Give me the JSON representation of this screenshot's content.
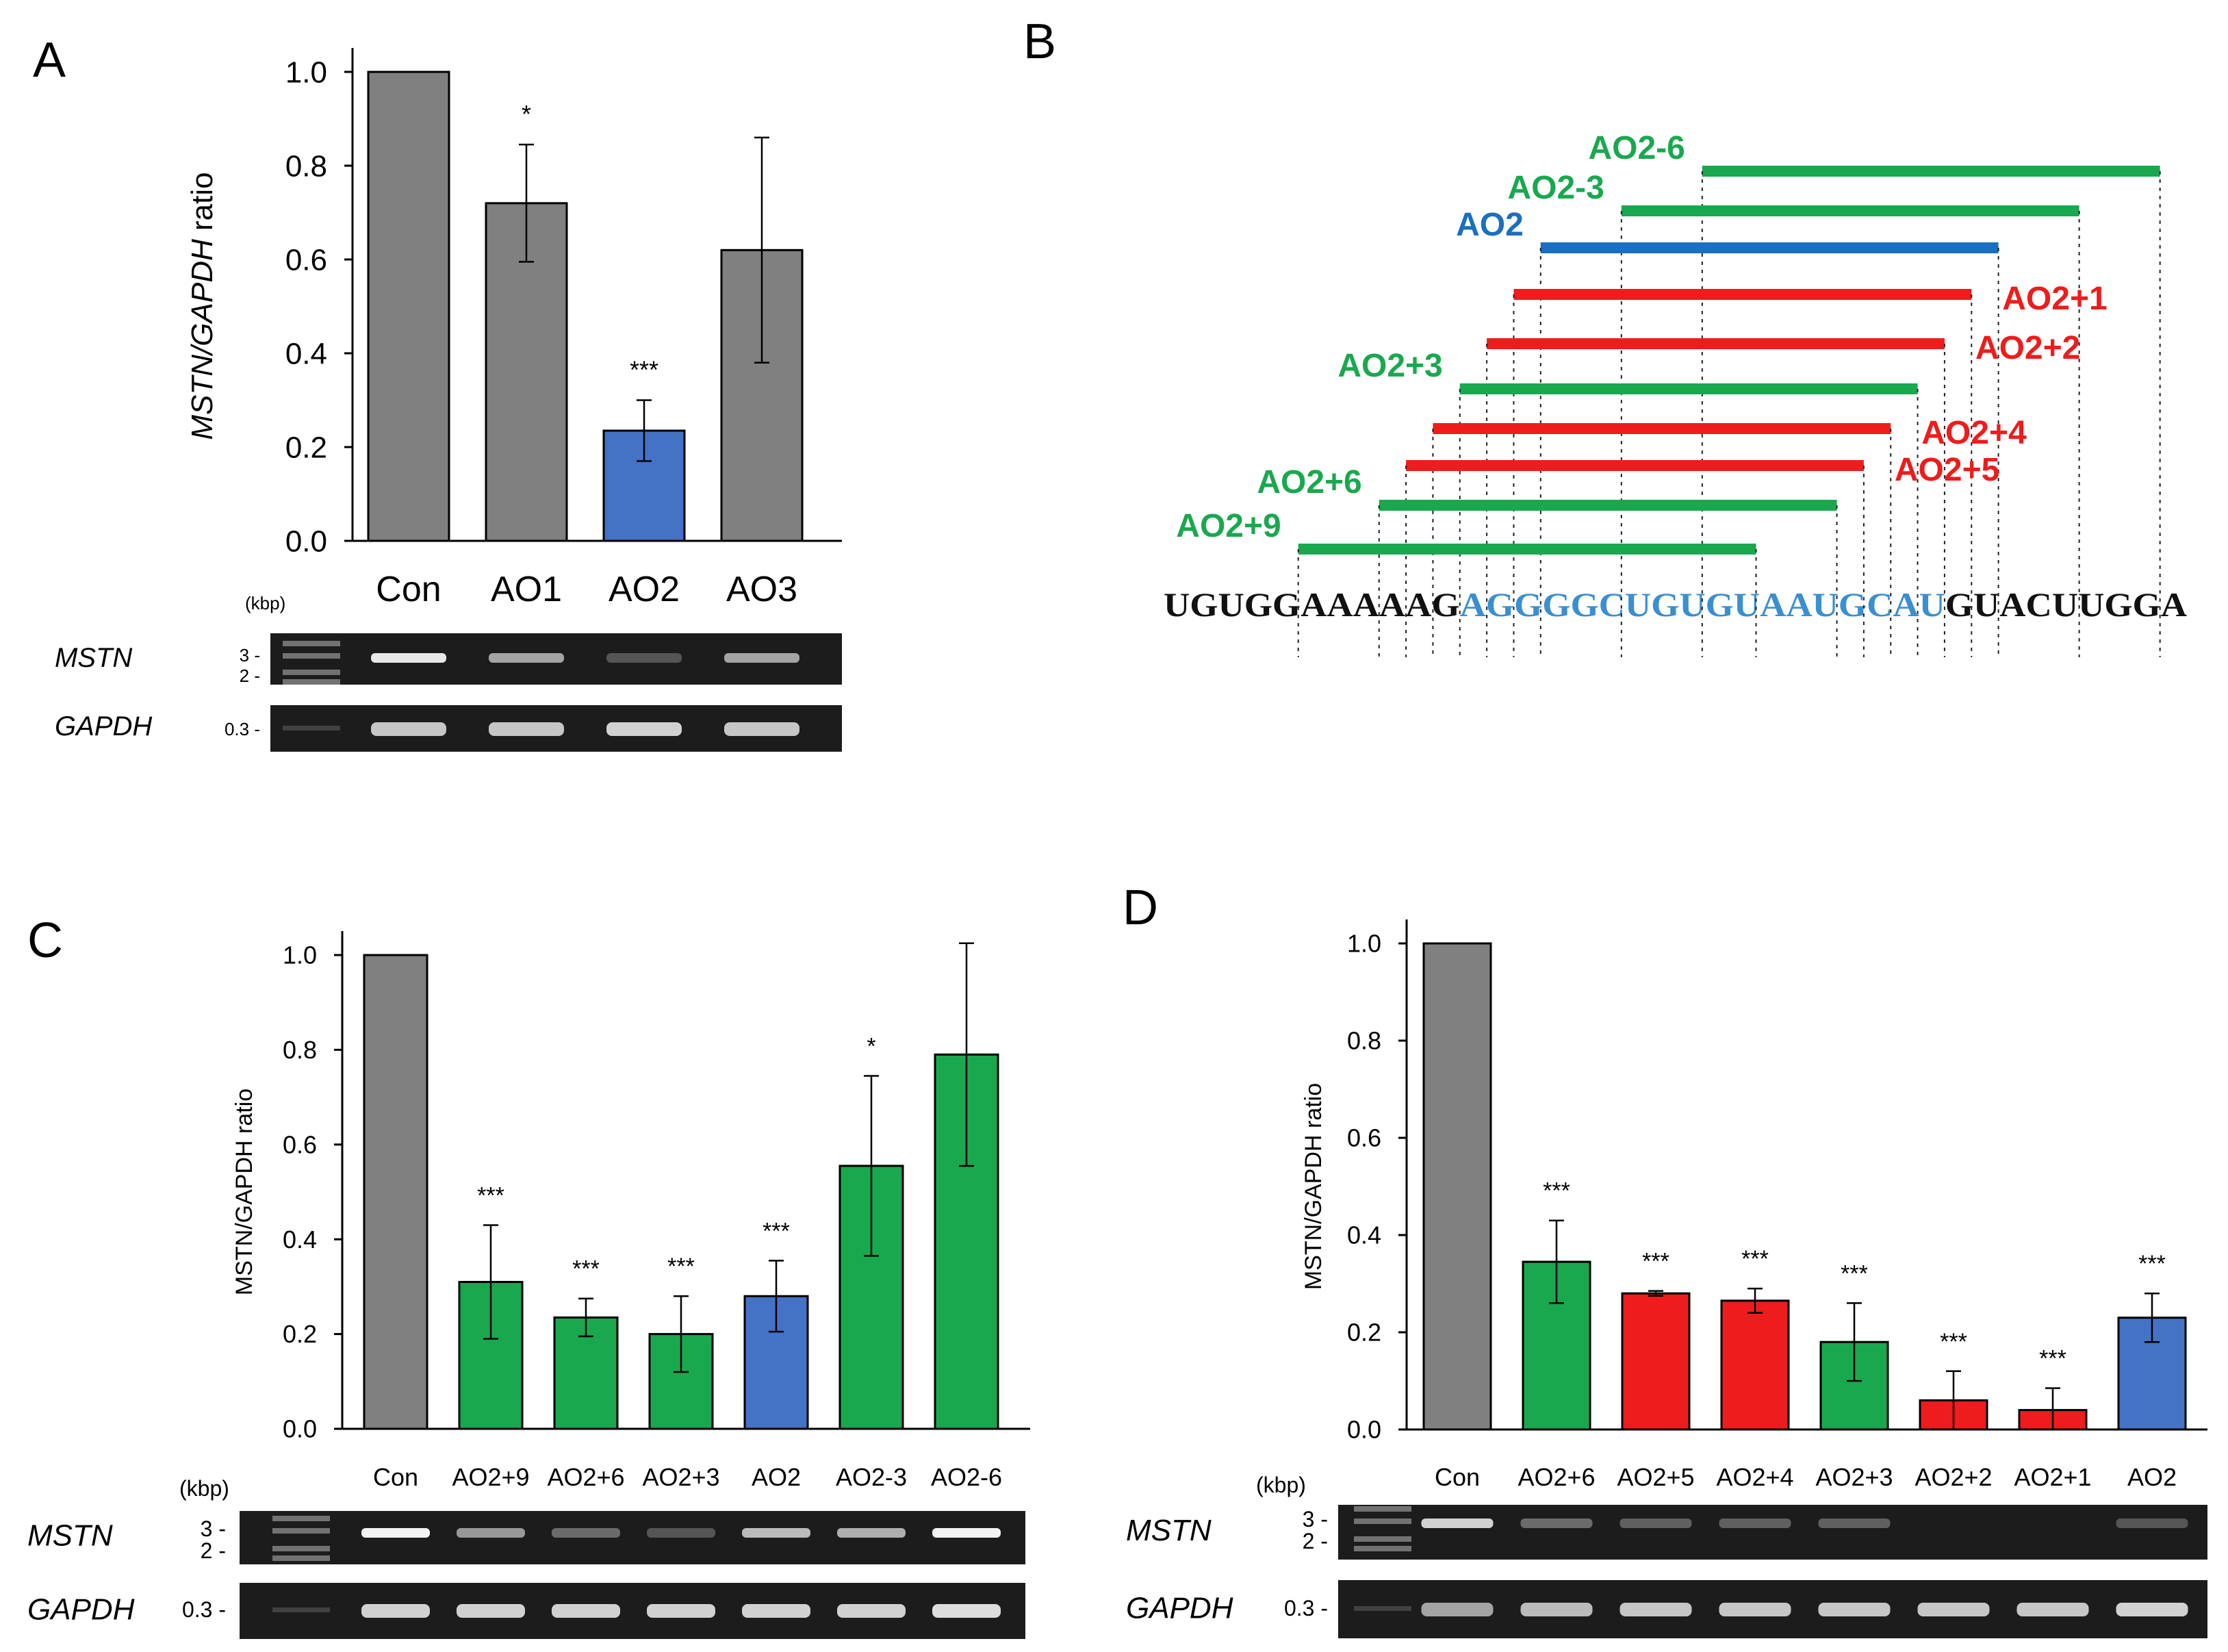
{
  "panels": {
    "A": {
      "letter": "A"
    },
    "B": {
      "letter": "B"
    },
    "C": {
      "letter": "C"
    },
    "D": {
      "letter": "D"
    }
  },
  "gel_labels": {
    "kbp": "(kbp)",
    "mstn": "MSTN",
    "gapdh": "GAPDH",
    "mark_3": "3 -",
    "mark_2": "2 -",
    "mark_03": "0.3 -"
  },
  "chart_data": [
    {
      "panel": "A",
      "type": "bar",
      "ylabel_italic": "MSTN/GAPDH",
      "ylabel_suffix": " ratio",
      "ylim": [
        0,
        1.0
      ],
      "yticks": [
        "0.0",
        "0.2",
        "0.4",
        "0.6",
        "0.8",
        "1.0"
      ],
      "categories": [
        "Con",
        "AO1",
        "AO2",
        "AO3"
      ],
      "values": [
        1.0,
        0.72,
        0.235,
        0.62
      ],
      "errors": [
        0,
        0.125,
        0.065,
        0.24
      ],
      "significance": [
        "",
        "*",
        "***",
        ""
      ],
      "colors": [
        "#808080",
        "#808080",
        "#4472c4",
        "#808080"
      ]
    },
    {
      "panel": "C",
      "type": "bar",
      "ylabel": "MSTN/GAPDH ratio",
      "ylim": [
        0,
        1.0
      ],
      "yticks": [
        "0.0",
        "0.2",
        "0.4",
        "0.6",
        "0.8",
        "1.0"
      ],
      "categories": [
        "Con",
        "AO2+9",
        "AO2+6",
        "AO2+3",
        "AO2",
        "AO2-3",
        "AO2-6"
      ],
      "values": [
        1.0,
        0.31,
        0.235,
        0.2,
        0.28,
        0.555,
        0.79
      ],
      "errors": [
        0,
        0.12,
        0.04,
        0.08,
        0.075,
        0.19,
        0.235
      ],
      "significance": [
        "",
        "***",
        "***",
        "***",
        "***",
        "*",
        ""
      ],
      "colors": [
        "#808080",
        "#1aa84f",
        "#1aa84f",
        "#1aa84f",
        "#4472c4",
        "#1aa84f",
        "#1aa84f"
      ]
    },
    {
      "panel": "D",
      "type": "bar",
      "ylabel": "MSTN/GAPDH ratio",
      "ylim": [
        0,
        1.0
      ],
      "yticks": [
        "0.0",
        "0.2",
        "0.4",
        "0.6",
        "0.8",
        "1.0"
      ],
      "categories": [
        "Con",
        "AO2+6",
        "AO2+5",
        "AO2+4",
        "AO2+3",
        "AO2+2",
        "AO2+1",
        "AO2"
      ],
      "values": [
        1.0,
        0.345,
        0.28,
        0.265,
        0.18,
        0.06,
        0.04,
        0.23
      ],
      "errors": [
        0,
        0.085,
        0.005,
        0.025,
        0.08,
        0.06,
        0.045,
        0.05
      ],
      "significance": [
        "",
        "***",
        "***",
        "***",
        "***",
        "***",
        "***",
        "***"
      ],
      "colors": [
        "#808080",
        "#1aa84f",
        "#ee1c1c",
        "#ee1c1c",
        "#1aa84f",
        "#ee1c1c",
        "#ee1c1c",
        "#4472c4"
      ]
    }
  ],
  "sequence": {
    "prefix": "UGUGGAAAAAG",
    "target": "AGGGGCUGUGUAAUGCAU",
    "suffix": "GUACUUGGA",
    "target_color": "#3a8fd0"
  },
  "oligos": [
    {
      "label": "AO2-6",
      "color": "#1aa84f",
      "start": 20,
      "end": 37
    },
    {
      "label": "AO2-3",
      "color": "#1aa84f",
      "start": 17,
      "end": 34
    },
    {
      "label": "AO2",
      "color": "#1a6fc0",
      "start": 14,
      "end": 31
    },
    {
      "label": "AO2+1",
      "color": "#ee1c1c",
      "start": 13,
      "end": 30
    },
    {
      "label": "AO2+2",
      "color": "#ee1c1c",
      "start": 12,
      "end": 29
    },
    {
      "label": "AO2+3",
      "color": "#1aa84f",
      "start": 11,
      "end": 28
    },
    {
      "label": "AO2+4",
      "color": "#ee1c1c",
      "start": 10,
      "end": 27
    },
    {
      "label": "AO2+5",
      "color": "#ee1c1c",
      "start": 9,
      "end": 26
    },
    {
      "label": "AO2+6",
      "color": "#1aa84f",
      "start": 8,
      "end": 25
    },
    {
      "label": "AO2+9",
      "color": "#1aa84f",
      "start": 5,
      "end": 22
    }
  ],
  "gels": {
    "A": {
      "mstn": [
        0.15,
        0.9,
        0.6,
        0.25,
        0.6
      ],
      "gapdh": [
        0.1,
        0.75,
        0.75,
        0.8,
        0.75
      ]
    },
    "C": {
      "mstn": [
        0.15,
        0.95,
        0.55,
        0.35,
        0.25,
        0.7,
        0.65,
        0.95
      ],
      "gapdh": [
        0.1,
        0.8,
        0.8,
        0.8,
        0.8,
        0.8,
        0.8,
        0.85
      ]
    },
    "D": {
      "mstn": [
        0.2,
        0.8,
        0.35,
        0.3,
        0.3,
        0.3,
        0.0,
        0.0,
        0.25
      ],
      "gapdh": [
        0.1,
        0.6,
        0.7,
        0.75,
        0.75,
        0.75,
        0.75,
        0.75,
        0.8
      ]
    }
  }
}
